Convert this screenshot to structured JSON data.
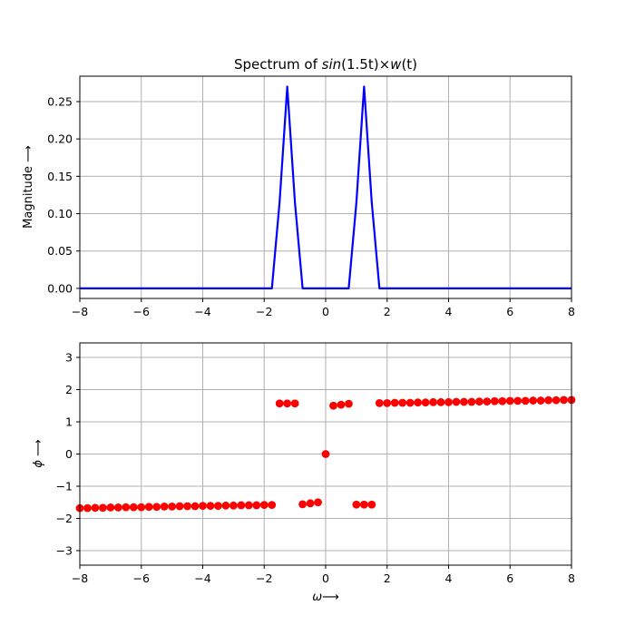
{
  "chart_data": [
    {
      "type": "line",
      "title": "Spectrum of sin(1.5t)×w(t)",
      "title_parts": {
        "prefix": "Spectrum of ",
        "sin": "sin",
        "arg": "(1.5t)",
        "times": "×",
        "w": "w",
        "w_arg": "(t)"
      },
      "xlabel": "",
      "ylabel": "Magnitude ⟶",
      "xlim": [
        -8,
        8
      ],
      "ylim": [
        -0.0135,
        0.284
      ],
      "xticks": [
        "−8",
        "−6",
        "−4",
        "−2",
        "0",
        "2",
        "4",
        "6",
        "8"
      ],
      "yticks": [
        "0.00",
        "0.05",
        "0.10",
        "0.15",
        "0.20",
        "0.25"
      ],
      "grid": true,
      "color": "#0000ff",
      "x": [
        -8,
        -1.75,
        -1.5,
        -1.25,
        -1.0,
        -0.75,
        0.75,
        1.0,
        1.25,
        1.5,
        1.75,
        8
      ],
      "y": [
        0,
        0,
        0.115,
        0.27,
        0.115,
        0,
        0,
        0.115,
        0.27,
        0.115,
        0,
        0
      ]
    },
    {
      "type": "scatter",
      "xlabel": "ω⟶",
      "ylabel": "ϕ ⟶",
      "xlim": [
        -8,
        8
      ],
      "ylim": [
        -3.45,
        3.45
      ],
      "xticks": [
        "−8",
        "−6",
        "−4",
        "−2",
        "0",
        "2",
        "4",
        "6",
        "8"
      ],
      "yticks": [
        "−3",
        "−2",
        "−1",
        "0",
        "1",
        "2",
        "3"
      ],
      "grid": true,
      "color": "#ff0000",
      "points": [
        [
          -8.0,
          -1.68
        ],
        [
          -7.75,
          -1.68
        ],
        [
          -7.5,
          -1.67
        ],
        [
          -7.25,
          -1.67
        ],
        [
          -7.0,
          -1.66
        ],
        [
          -6.75,
          -1.66
        ],
        [
          -6.5,
          -1.65
        ],
        [
          -6.25,
          -1.65
        ],
        [
          -6.0,
          -1.65
        ],
        [
          -5.75,
          -1.64
        ],
        [
          -5.5,
          -1.64
        ],
        [
          -5.25,
          -1.63
        ],
        [
          -5.0,
          -1.63
        ],
        [
          -4.75,
          -1.62
        ],
        [
          -4.5,
          -1.62
        ],
        [
          -4.25,
          -1.62
        ],
        [
          -4.0,
          -1.61
        ],
        [
          -3.75,
          -1.61
        ],
        [
          -3.5,
          -1.61
        ],
        [
          -3.25,
          -1.6
        ],
        [
          -3.0,
          -1.6
        ],
        [
          -2.75,
          -1.59
        ],
        [
          -2.5,
          -1.59
        ],
        [
          -2.25,
          -1.59
        ],
        [
          -2.0,
          -1.58
        ],
        [
          -1.75,
          -1.58
        ],
        [
          -1.5,
          1.57
        ],
        [
          -1.25,
          1.57
        ],
        [
          -1.0,
          1.57
        ],
        [
          -0.75,
          -1.56
        ],
        [
          -0.5,
          -1.53
        ],
        [
          -0.25,
          -1.5
        ],
        [
          0.0,
          0.0
        ],
        [
          0.25,
          1.5
        ],
        [
          0.5,
          1.53
        ],
        [
          0.75,
          1.56
        ],
        [
          1.0,
          -1.57
        ],
        [
          1.25,
          -1.57
        ],
        [
          1.5,
          -1.57
        ],
        [
          1.75,
          1.58
        ],
        [
          2.0,
          1.58
        ],
        [
          2.25,
          1.59
        ],
        [
          2.5,
          1.59
        ],
        [
          2.75,
          1.59
        ],
        [
          3.0,
          1.6
        ],
        [
          3.25,
          1.6
        ],
        [
          3.5,
          1.61
        ],
        [
          3.75,
          1.61
        ],
        [
          4.0,
          1.61
        ],
        [
          4.25,
          1.62
        ],
        [
          4.5,
          1.62
        ],
        [
          4.75,
          1.62
        ],
        [
          5.0,
          1.63
        ],
        [
          5.25,
          1.63
        ],
        [
          5.5,
          1.64
        ],
        [
          5.75,
          1.64
        ],
        [
          6.0,
          1.65
        ],
        [
          6.25,
          1.65
        ],
        [
          6.5,
          1.65
        ],
        [
          6.75,
          1.66
        ],
        [
          7.0,
          1.66
        ],
        [
          7.25,
          1.67
        ],
        [
          7.5,
          1.67
        ],
        [
          7.75,
          1.68
        ],
        [
          8.0,
          1.68
        ]
      ]
    }
  ]
}
